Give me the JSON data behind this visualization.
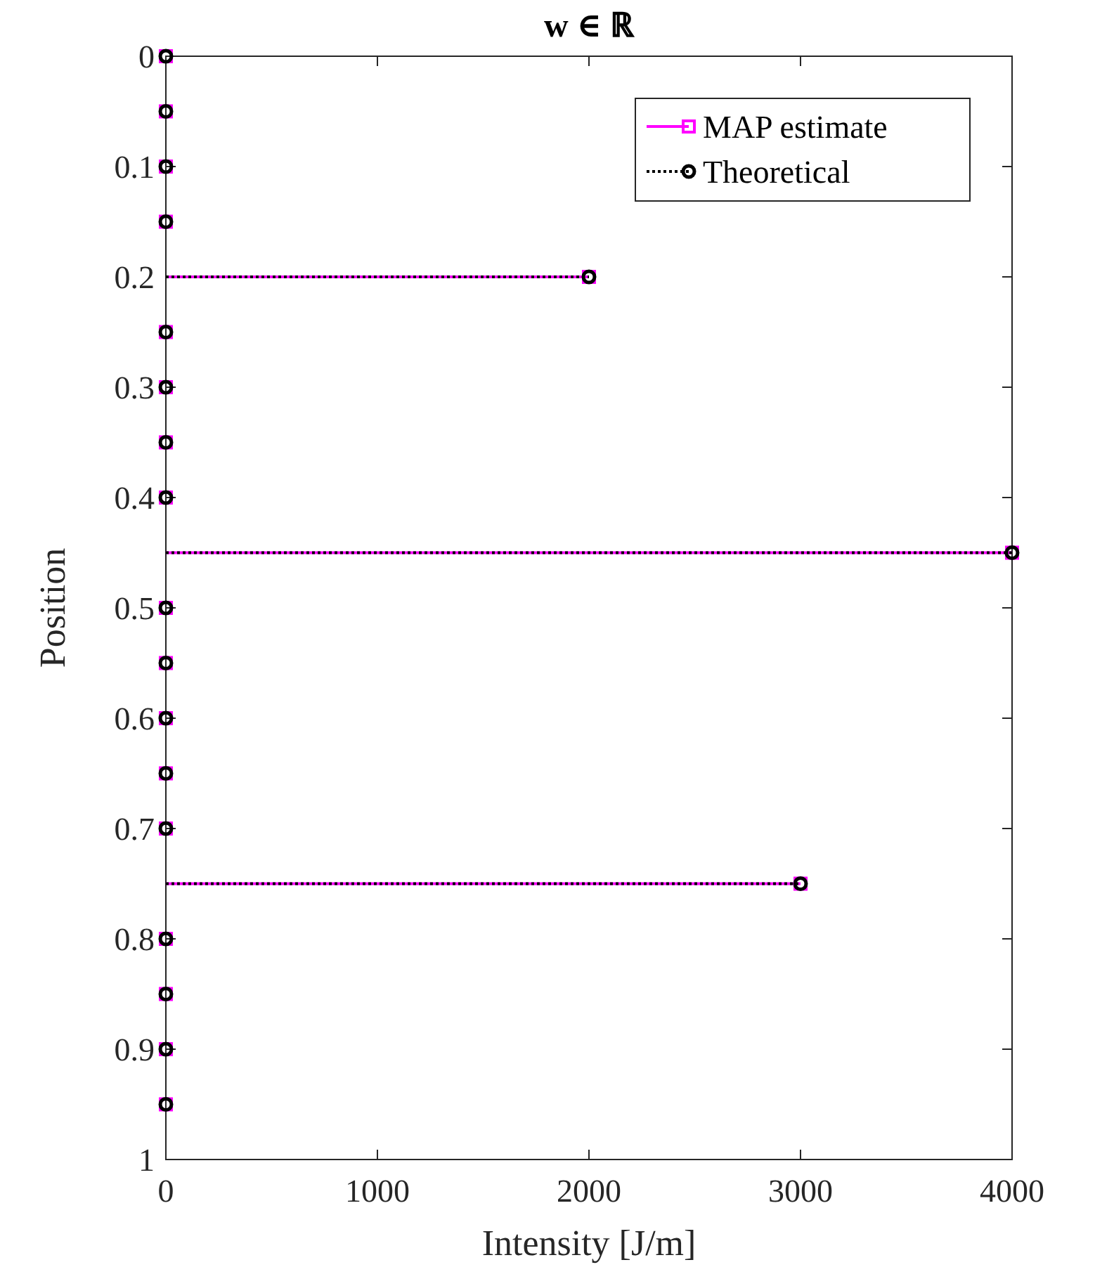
{
  "chart_data": {
    "type": "lollipop",
    "orientation": "horizontal",
    "title": "w ∈ ℝ",
    "xlabel": "Intensity [J/m]",
    "ylabel": "Position",
    "x": [
      0,
      0.05,
      0.1,
      0.15,
      0.2,
      0.25,
      0.3,
      0.35,
      0.4,
      0.45,
      0.5,
      0.55,
      0.6,
      0.65,
      0.7,
      0.75,
      0.8,
      0.85,
      0.9,
      0.95
    ],
    "series": [
      {
        "name": "MAP estimate",
        "color": "#ff00ff",
        "marker": "square",
        "line_style": "solid",
        "values": [
          0,
          0,
          0,
          0,
          2000,
          0,
          0,
          0,
          0,
          4000,
          0,
          0,
          0,
          0,
          0,
          3000,
          0,
          0,
          0,
          0
        ]
      },
      {
        "name": "Theoretical",
        "color": "#000000",
        "marker": "circle",
        "line_style": "dotted",
        "values": [
          0,
          0,
          0,
          0,
          2000,
          0,
          0,
          0,
          0,
          4000,
          0,
          0,
          0,
          0,
          0,
          3000,
          0,
          0,
          0,
          0
        ]
      }
    ],
    "xlim": [
      0,
      4000
    ],
    "xticks": [
      0,
      1000,
      2000,
      3000,
      4000
    ],
    "ylim": [
      1,
      0
    ],
    "yticks": [
      0,
      0.1,
      0.2,
      0.3,
      0.4,
      0.5,
      0.6,
      0.7,
      0.8,
      0.9,
      1
    ],
    "legend": "top right",
    "grid": false
  }
}
